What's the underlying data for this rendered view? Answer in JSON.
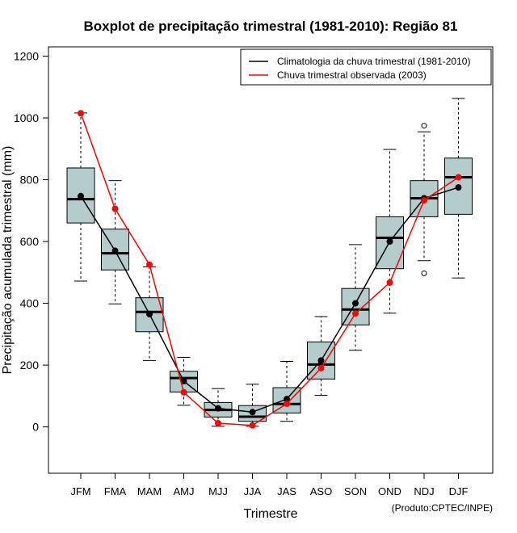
{
  "chart_data": {
    "type": "boxplot",
    "title": "Boxplot de precipitação trimestral (1981-2010): Região 81",
    "xlabel": "Trimestre",
    "ylabel": "Precipitação acumulada trimestral (mm)",
    "credit": "(Produto:CPTEC/INPE)",
    "ylim": [
      -150,
      1230
    ],
    "yticks": [
      0,
      200,
      400,
      600,
      800,
      1000,
      1200
    ],
    "categories": [
      "JFM",
      "FMA",
      "MAM",
      "AMJ",
      "MJJ",
      "JJA",
      "JAS",
      "ASO",
      "SON",
      "OND",
      "NDJ",
      "DJF"
    ],
    "boxes": [
      {
        "whisker_low": 472,
        "q1": 660,
        "median": 737,
        "q3": 838,
        "whisker_high": 1016,
        "outliers": []
      },
      {
        "whisker_low": 398,
        "q1": 508,
        "median": 562,
        "q3": 640,
        "whisker_high": 797,
        "outliers": []
      },
      {
        "whisker_low": 215,
        "q1": 308,
        "median": 372,
        "q3": 418,
        "whisker_high": 518,
        "outliers": []
      },
      {
        "whisker_low": 70,
        "q1": 113,
        "median": 158,
        "q3": 180,
        "whisker_high": 225,
        "outliers": []
      },
      {
        "whisker_low": 2,
        "q1": 32,
        "median": 55,
        "q3": 79,
        "whisker_high": 124,
        "outliers": []
      },
      {
        "whisker_low": 2,
        "q1": 18,
        "median": 33,
        "q3": 69,
        "whisker_high": 138,
        "outliers": []
      },
      {
        "whisker_low": 18,
        "q1": 45,
        "median": 74,
        "q3": 127,
        "whisker_high": 212,
        "outliers": []
      },
      {
        "whisker_low": 102,
        "q1": 155,
        "median": 202,
        "q3": 275,
        "whisker_high": 357,
        "outliers": []
      },
      {
        "whisker_low": 248,
        "q1": 330,
        "median": 380,
        "q3": 448,
        "whisker_high": 590,
        "outliers": []
      },
      {
        "whisker_low": 368,
        "q1": 512,
        "median": 612,
        "q3": 680,
        "whisker_high": 898,
        "outliers": []
      },
      {
        "whisker_low": 538,
        "q1": 680,
        "median": 740,
        "q3": 797,
        "whisker_high": 955,
        "outliers": [
          497,
          975
        ]
      },
      {
        "whisker_low": 482,
        "q1": 688,
        "median": 808,
        "q3": 870,
        "whisker_high": 1063,
        "outliers": []
      }
    ],
    "series": [
      {
        "name": "Climatologia da chuva trimestral (1981-2010)",
        "color": "#000000",
        "values": [
          747,
          570,
          365,
          148,
          60,
          48,
          90,
          215,
          400,
          600,
          740,
          775
        ]
      },
      {
        "name": "Chuva trimestral observada (2003)",
        "color": "#ff0000",
        "values": [
          1015,
          706,
          525,
          112,
          12,
          5,
          75,
          190,
          367,
          467,
          733,
          808
        ]
      }
    ],
    "box_fill": "#b5cccc",
    "legend_position": "top-right"
  }
}
